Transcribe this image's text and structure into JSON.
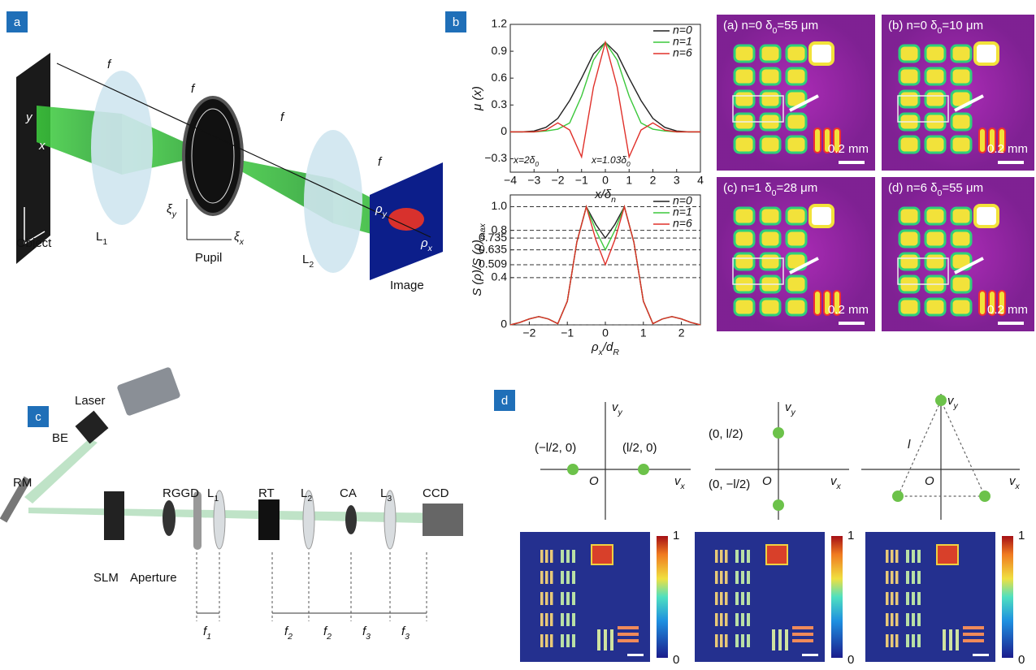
{
  "panel_labels": [
    "a",
    "b",
    "c",
    "d"
  ],
  "panel_a": {
    "f_labels": [
      "f",
      "f",
      "f",
      "f"
    ],
    "object": "Object",
    "lens1": [
      "L",
      "1"
    ],
    "pupil": "Pupil",
    "lens2": [
      "L",
      "2"
    ],
    "image": "Image",
    "axis_x": "x",
    "axis_y": "y",
    "xi_y": [
      "ξ",
      "y"
    ],
    "xi_x": [
      "ξ",
      "x"
    ],
    "rho_y": [
      "ρ",
      "y"
    ],
    "rho_x": [
      "ρ",
      "x"
    ]
  },
  "chart_data": [
    {
      "type": "line",
      "y_label": "μ (x)",
      "x_label": [
        "x/δ",
        "n"
      ],
      "x": [
        -4,
        -3.5,
        -3,
        -2.5,
        -2,
        -1.5,
        -1,
        -0.5,
        0,
        0.5,
        1,
        1.5,
        2,
        2.5,
        3,
        3.5,
        4
      ],
      "series": [
        {
          "name": "n=0",
          "color": "#222222",
          "values": [
            0,
            0,
            0.01,
            0.05,
            0.15,
            0.35,
            0.6,
            0.87,
            1,
            0.87,
            0.6,
            0.35,
            0.15,
            0.05,
            0.01,
            0,
            0
          ]
        },
        {
          "name": "n=1",
          "color": "#3cc83c",
          "values": [
            0,
            0,
            0,
            0.01,
            0.03,
            0.1,
            0.4,
            0.8,
            1,
            0.8,
            0.4,
            0.1,
            0.03,
            0.01,
            0,
            0,
            0
          ]
        },
        {
          "name": "n=6",
          "color": "#e0302a",
          "values": [
            0,
            0,
            0,
            0.02,
            0.1,
            0.02,
            -0.28,
            0.5,
            1,
            0.5,
            -0.28,
            0.02,
            0.1,
            0.02,
            0,
            0,
            0
          ]
        }
      ],
      "xlim": [
        -4,
        4
      ],
      "xticks": [
        {
          "value": -4,
          "label": "−4"
        },
        {
          "value": -3,
          "label": "−3"
        },
        {
          "value": -2,
          "label": "−2"
        },
        {
          "value": -1,
          "label": "−1"
        },
        0,
        1,
        2,
        3,
        4
      ],
      "ylim": [
        -0.45,
        1.2
      ],
      "yticks": [
        {
          "value": -0.3,
          "label": "−0.3"
        },
        0,
        0.3,
        0.6,
        0.9,
        1.2
      ],
      "grid": false,
      "legend": "upper right",
      "annotations": [
        [
          "x=2δ",
          "0"
        ],
        [
          "x=1.03δ",
          "0"
        ]
      ]
    },
    {
      "type": "line",
      "y_label": [
        "S (ρ)/S (ρ)",
        "max"
      ],
      "x_label": [
        "ρ",
        "x",
        "/d",
        "R"
      ],
      "x": [
        -2.5,
        -2.25,
        -2,
        -1.75,
        -1.5,
        -1.25,
        -1,
        -0.75,
        -0.5,
        -0.25,
        0,
        0.25,
        0.5,
        0.75,
        1,
        1.25,
        1.5,
        1.75,
        2,
        2.25,
        2.5
      ],
      "series": [
        {
          "name": "n=0",
          "color": "#222222",
          "values": [
            0,
            0.02,
            0.05,
            0.07,
            0.05,
            0.01,
            0.2,
            0.7,
            1,
            0.85,
            0.735,
            0.85,
            1,
            0.7,
            0.2,
            0.01,
            0.05,
            0.07,
            0.05,
            0.02,
            0
          ]
        },
        {
          "name": "n=1",
          "color": "#3cc83c",
          "values": [
            0,
            0.02,
            0.05,
            0.07,
            0.05,
            0.01,
            0.2,
            0.7,
            1,
            0.8,
            0.635,
            0.8,
            1,
            0.7,
            0.2,
            0.01,
            0.05,
            0.07,
            0.05,
            0.02,
            0
          ]
        },
        {
          "name": "n=6",
          "color": "#e0302a",
          "values": [
            0,
            0.02,
            0.05,
            0.07,
            0.05,
            0.01,
            0.2,
            0.7,
            1,
            0.72,
            0.509,
            0.72,
            1,
            0.7,
            0.2,
            0.01,
            0.05,
            0.07,
            0.05,
            0.02,
            0
          ]
        }
      ],
      "xlim": [
        -2.5,
        2.5
      ],
      "xticks": [
        {
          "value": -2,
          "label": "−2"
        },
        {
          "value": -1,
          "label": "−1"
        },
        0,
        1,
        2
      ],
      "ylim": [
        0,
        1.1
      ],
      "yticks": [
        0,
        0.4,
        0.509,
        0.635,
        0.735,
        0.8,
        {
          "value": 1,
          "label": "1.0"
        }
      ],
      "grid": true,
      "legend": "upper right"
    }
  ],
  "panel_b_images": [
    {
      "label": [
        "(a)  n=0 δ",
        "0",
        "=55 μm"
      ],
      "scale": "0.2 mm"
    },
    {
      "label": [
        "(b)  n=0 δ",
        "0",
        "=10 μm"
      ],
      "scale": "0.2 mm"
    },
    {
      "label": [
        "(c)  n=1 δ",
        "0",
        "=28 μm"
      ],
      "scale": "0.2 mm"
    },
    {
      "label": [
        "(d)  n=6 δ",
        "0",
        "=55 μm"
      ],
      "scale": "0.2 mm"
    }
  ],
  "panel_c": {
    "laser": "Laser",
    "be": "BE",
    "rm": "RM",
    "slm": "SLM",
    "aperture": "Aperture",
    "rggd": "RGGD",
    "l1": [
      "L",
      "1"
    ],
    "rt": "RT",
    "l2": [
      "L",
      "2"
    ],
    "ca": "CA",
    "l3": [
      "L",
      "3"
    ],
    "ccd": "CCD",
    "distances": [
      [
        "f",
        "1"
      ],
      [
        "f",
        "2"
      ],
      [
        "f",
        "2"
      ],
      [
        "f",
        "3"
      ],
      [
        "f",
        "3"
      ]
    ]
  },
  "panel_d": {
    "plots": [
      {
        "vy": [
          "v",
          "y"
        ],
        "vx": [
          "v",
          "x"
        ],
        "origin": "O",
        "points": [
          "(−l/2, 0)",
          "(l/2, 0)"
        ]
      },
      {
        "vy": [
          "v",
          "y"
        ],
        "vx": [
          "v",
          "x"
        ],
        "origin": "O",
        "points": [
          "(0, l/2)",
          "(0, −l/2)"
        ]
      },
      {
        "vy": [
          "v",
          "y"
        ],
        "vx": [
          "v",
          "x"
        ],
        "origin": "O",
        "side": "l"
      }
    ],
    "colorbar": {
      "max": "1",
      "min": "0"
    }
  }
}
